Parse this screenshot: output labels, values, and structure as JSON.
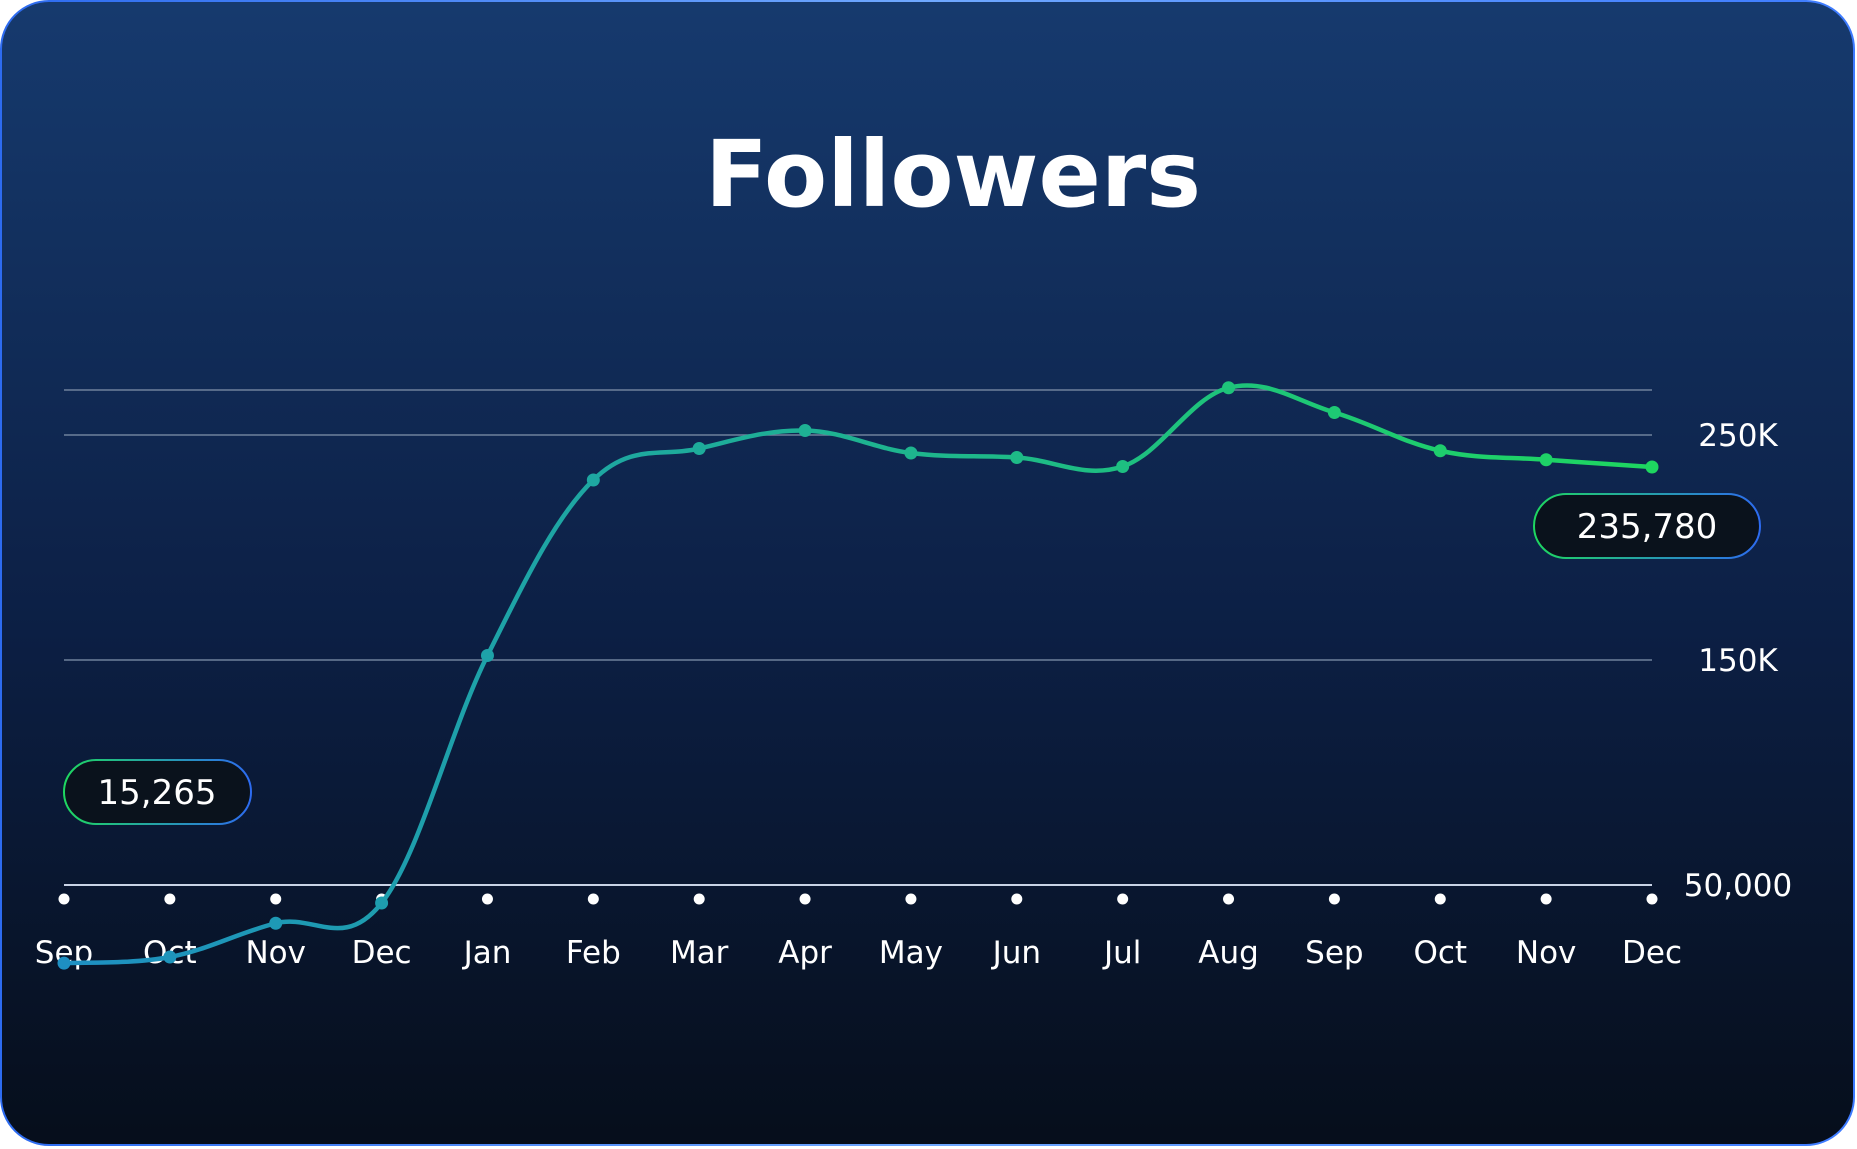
{
  "chart_data": {
    "type": "line",
    "title": "Followers",
    "categories": [
      "Sep",
      "Oct",
      "Nov",
      "Dec",
      "Jan",
      "Feb",
      "Mar",
      "Apr",
      "May",
      "Jun",
      "Jul",
      "Aug",
      "Sep",
      "Oct",
      "Nov",
      "Dec"
    ],
    "values": [
      15265,
      18000,
      33000,
      42000,
      152000,
      230000,
      244000,
      252000,
      242000,
      240000,
      236000,
      271000,
      260000,
      243000,
      239000,
      235780
    ],
    "yticks": [
      {
        "value": 50000,
        "label": "50,000"
      },
      {
        "value": 150000,
        "label": "150K"
      },
      {
        "value": 250000,
        "label": "250K"
      }
    ],
    "gridlines": [
      50000,
      150000,
      250000,
      270000
    ],
    "ylim": [
      50000,
      270000
    ],
    "grid": true,
    "callouts": {
      "start": "15,265",
      "end": "235,780"
    },
    "colors": {
      "line_start": "#1E8FC2",
      "line_end": "#1ED760",
      "background_top": "#163A6E",
      "background_bottom": "#060E1B",
      "border": "#2D6BF0"
    }
  }
}
